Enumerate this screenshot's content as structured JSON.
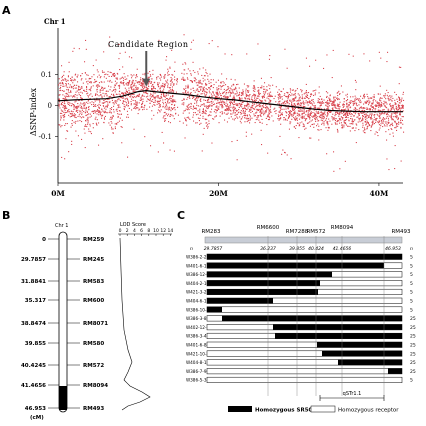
{
  "panel_a": {
    "letter": "A",
    "chr": "Chr 1",
    "annotation": "Candidate  Region",
    "chart_data": {
      "type": "scatter",
      "title": "",
      "xlabel": "",
      "ylabel": "ΔSNP-index",
      "x_unit": "Mb",
      "xlim": [
        0,
        43
      ],
      "ylim": [
        -0.25,
        0.25
      ],
      "xticks": [
        {
          "v": 0,
          "label": "0M"
        },
        {
          "v": 20,
          "label": "20M"
        },
        {
          "v": 40,
          "label": "40M"
        }
      ],
      "yticks": [
        {
          "v": 0.1,
          "label": "0.1"
        },
        {
          "v": 0,
          "label": "0"
        },
        {
          "v": -0.1,
          "label": "-0.1"
        }
      ],
      "series": [
        {
          "role": "snp-points",
          "color": "#d9454f"
        },
        {
          "role": "fitted-line",
          "color": "#000000",
          "x": [
            0,
            2,
            4,
            6,
            8,
            10,
            11,
            12,
            14,
            16,
            18,
            20,
            22,
            24,
            26,
            28,
            30,
            32,
            34,
            36,
            38,
            40,
            42,
            43
          ],
          "y": [
            0.015,
            0.018,
            0.02,
            0.022,
            0.03,
            0.045,
            0.048,
            0.045,
            0.04,
            0.035,
            0.028,
            0.022,
            0.018,
            0.012,
            0.006,
            0.0,
            -0.006,
            -0.012,
            -0.016,
            -0.018,
            -0.02,
            -0.02,
            -0.02,
            -0.02
          ]
        }
      ],
      "candidate_x": 11,
      "grid": false
    }
  },
  "panel_b": {
    "letter": "B",
    "chr_label": "Chr 1",
    "cm_label": "(cM)",
    "lod_label": "LOD Score",
    "lod_ticks": [
      "0",
      "2",
      "4",
      "6",
      "8",
      "10",
      "12",
      "14"
    ],
    "markers": [
      {
        "cm": "0",
        "name": "RM259"
      },
      {
        "cm": "29.7857",
        "name": "RM245"
      },
      {
        "cm": "31.8841",
        "name": "RM583"
      },
      {
        "cm": "35.317",
        "name": "RM600"
      },
      {
        "cm": "38.8474",
        "name": "RM8071"
      },
      {
        "cm": "39.855",
        "name": "RM580"
      },
      {
        "cm": "40.4245",
        "name": "RM572"
      },
      {
        "cm": "41.4656",
        "name": "RM8094"
      },
      {
        "cm": "46.953",
        "name": "RM493"
      }
    ]
  },
  "panel_c": {
    "letter": "C",
    "top_markers": [
      "RM283",
      "RM6600",
      "RM7288",
      "RM572",
      "RM8094",
      "RM493"
    ],
    "positions": [
      "29.7857",
      "36.237",
      "39.855",
      "40.424",
      "41.4656",
      "46.953"
    ],
    "n_header": "n",
    "rows": [
      {
        "id": "W386-2-2",
        "n": "5"
      },
      {
        "id": "W401-6-1",
        "n": "5"
      },
      {
        "id": "W386-12-6",
        "n": "5"
      },
      {
        "id": "W404-2-10",
        "n": "5"
      },
      {
        "id": "W421-3-2",
        "n": "5"
      },
      {
        "id": "W404-6-1",
        "n": "5"
      },
      {
        "id": "W386-10-3",
        "n": "5"
      },
      {
        "id": "W386-3-8",
        "n": "25"
      },
      {
        "id": "W402-12-7",
        "n": "25"
      },
      {
        "id": "W386-3-4",
        "n": "25"
      },
      {
        "id": "W401-6-8",
        "n": "25"
      },
      {
        "id": "W421-10-2",
        "n": "25"
      },
      {
        "id": "W404-8-11",
        "n": "25"
      },
      {
        "id": "W386-7-9",
        "n": "25"
      },
      {
        "id": "W386-5-3",
        "n": "5"
      }
    ],
    "qtl_label": "qSTr1.1",
    "legend_srs": "Homozygous SR50",
    "legend_receptor": "Homozygous receptor",
    "legend_colors": {
      "srs": "#000000",
      "receptor": "#ffffff"
    }
  }
}
